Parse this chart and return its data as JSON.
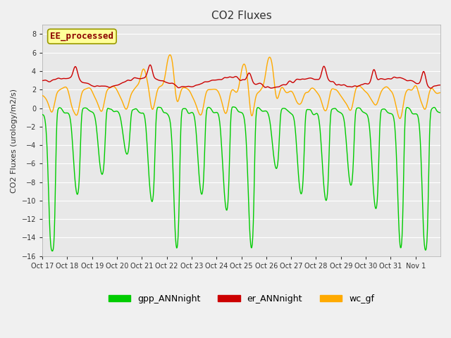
{
  "title": "CO2 Fluxes",
  "ylabel": "CO2 Fluxes (urology/m2/s)",
  "ylim": [
    -16,
    9
  ],
  "background_color": "#f0f0f0",
  "plot_bg_color": "#e8e8e8",
  "grid_color": "#ffffff",
  "annotation_text": "EE_processed",
  "annotation_color": "#8b0000",
  "annotation_bg": "#ffff99",
  "annotation_border": "#999900",
  "gpp_color": "#00cc00",
  "gpp_label": "gpp_ANNnight",
  "er_color": "#cc0000",
  "er_label": "er_ANNnight",
  "wc_color": "#ffaa00",
  "wc_label": "wc_gf",
  "lw": 1.0,
  "xtick_labels": [
    "Oct 17",
    "Oct 18",
    "Oct 19",
    "Oct 20",
    "Oct 21",
    "Oct 22",
    "Oct 23",
    "Oct 24",
    "Oct 25",
    "Oct 26",
    "Oct 27",
    "Oct 28",
    "Oct 29",
    "Oct 30",
    "Oct 31",
    "Nov 1"
  ],
  "n_days": 16,
  "pts_per_day": 48,
  "seed": 42
}
